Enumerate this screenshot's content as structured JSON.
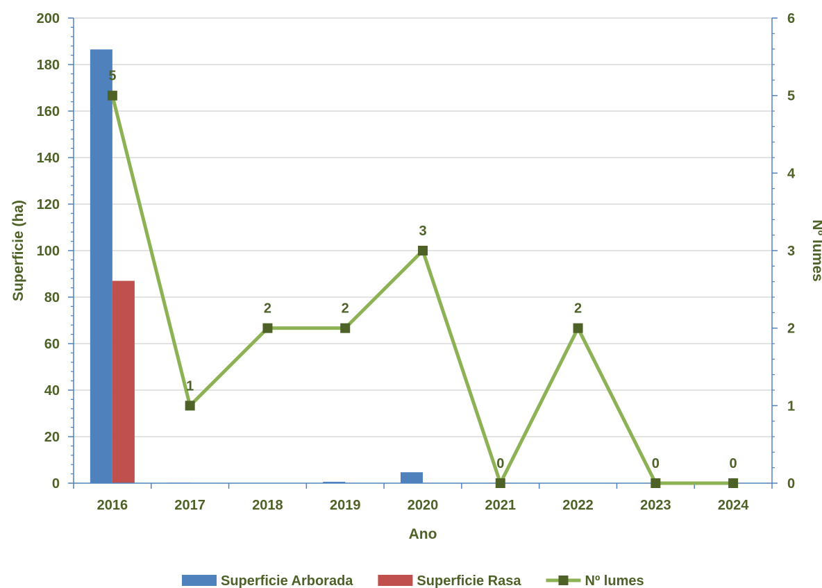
{
  "chart_data": {
    "type": "bar",
    "categories": [
      "2016",
      "2017",
      "2018",
      "2019",
      "2020",
      "2021",
      "2022",
      "2023",
      "2024"
    ],
    "series": [
      {
        "name": "Superficie Arborada",
        "kind": "bar",
        "axis": "left",
        "color": "#4f81bd",
        "values": [
          186.5,
          0.2,
          0,
          0.6,
          4.7,
          0,
          0,
          0,
          0
        ]
      },
      {
        "name": "Superficie Rasa",
        "kind": "bar",
        "axis": "left",
        "color": "#c0504d",
        "values": [
          87,
          0.1,
          0,
          0,
          0,
          0,
          0,
          0,
          0
        ]
      },
      {
        "name": "Nº lumes",
        "kind": "line",
        "axis": "right",
        "color": "#8db255",
        "marker_color": "#4e6228",
        "values": [
          5,
          1,
          2,
          2,
          3,
          0,
          2,
          0,
          0
        ],
        "data_labels": [
          "5",
          "1",
          "2",
          "2",
          "3",
          "0",
          "2",
          "0",
          "0"
        ]
      }
    ],
    "xlabel": "Ano",
    "ylabel": "Superficie (ha)",
    "y2label": "Nº lumes",
    "ylim": [
      0,
      200
    ],
    "y2lim": [
      0,
      6
    ],
    "yticks": [
      "0",
      "20",
      "40",
      "60",
      "80",
      "100",
      "120",
      "140",
      "160",
      "180",
      "200"
    ],
    "y2ticks": [
      "0",
      "1",
      "2",
      "3",
      "4",
      "5",
      "6"
    ],
    "grid": true,
    "legend_position": "bottom",
    "text_color": "#4e6228",
    "axis_color": "#4f81bd",
    "grid_color": "#d9d9d9"
  }
}
